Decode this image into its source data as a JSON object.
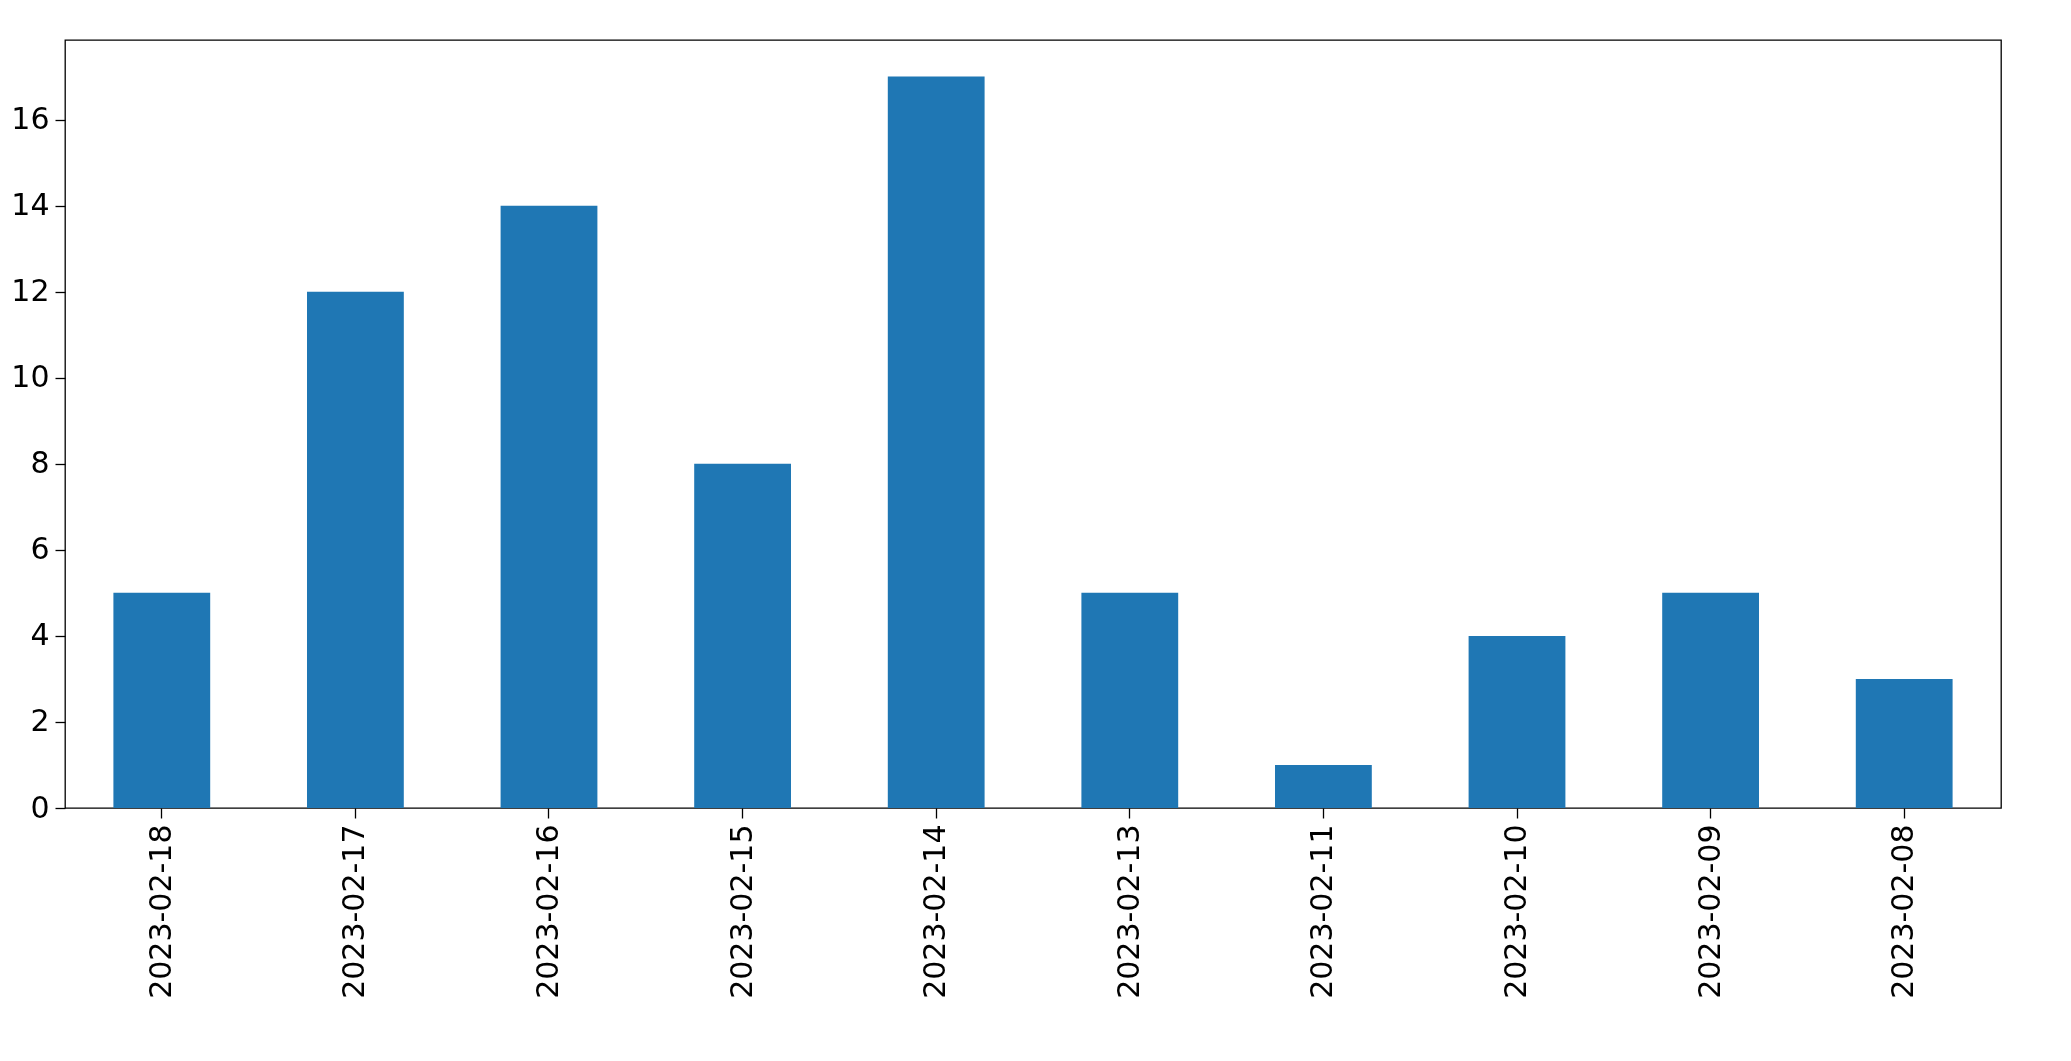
{
  "chart_data": {
    "type": "bar",
    "categories": [
      "2023-02-18",
      "2023-02-17",
      "2023-02-16",
      "2023-02-15",
      "2023-02-14",
      "2023-02-13",
      "2023-02-11",
      "2023-02-10",
      "2023-02-09",
      "2023-02-08"
    ],
    "values": [
      5,
      12,
      14,
      8,
      17,
      5,
      1,
      4,
      5,
      3
    ],
    "color": "#1f77b4",
    "ylim": [
      0,
      17.85
    ],
    "yticks": [
      0,
      2,
      4,
      6,
      8,
      10,
      12,
      14,
      16
    ],
    "grid": false
  }
}
